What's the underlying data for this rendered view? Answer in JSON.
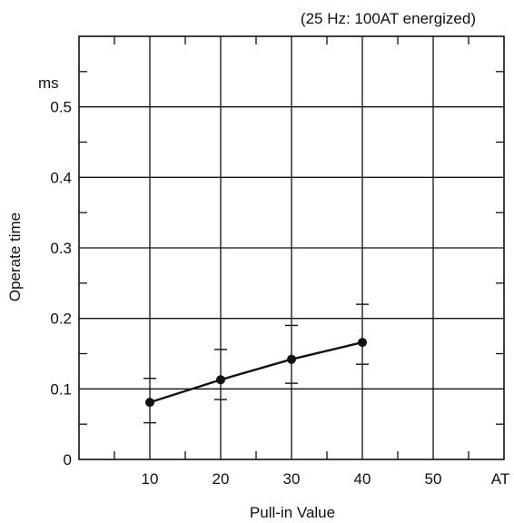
{
  "chart_data": {
    "type": "line",
    "note": "(25 Hz: 100AT energized)",
    "xlabel": "Pull-in Value",
    "x_unit": "AT",
    "ylabel": "Operate time",
    "y_unit": "ms",
    "xlim": [
      0,
      50
    ],
    "ylim": [
      0,
      0.5
    ],
    "x_ticks": [
      10,
      20,
      30,
      40,
      50
    ],
    "y_ticks": [
      0,
      0.1,
      0.2,
      0.3,
      0.4,
      0.5
    ],
    "y_tick_labels": [
      "0",
      "0.1",
      "0.2",
      "0.3",
      "0.4",
      "0.5"
    ],
    "grid": true,
    "series": [
      {
        "x": [
          10,
          20,
          30,
          40
        ],
        "y": [
          0.081,
          0.113,
          0.142,
          0.166
        ],
        "error_high": [
          0.115,
          0.156,
          0.19,
          0.22
        ],
        "error_low": [
          0.052,
          0.085,
          0.108,
          0.135
        ]
      }
    ]
  }
}
